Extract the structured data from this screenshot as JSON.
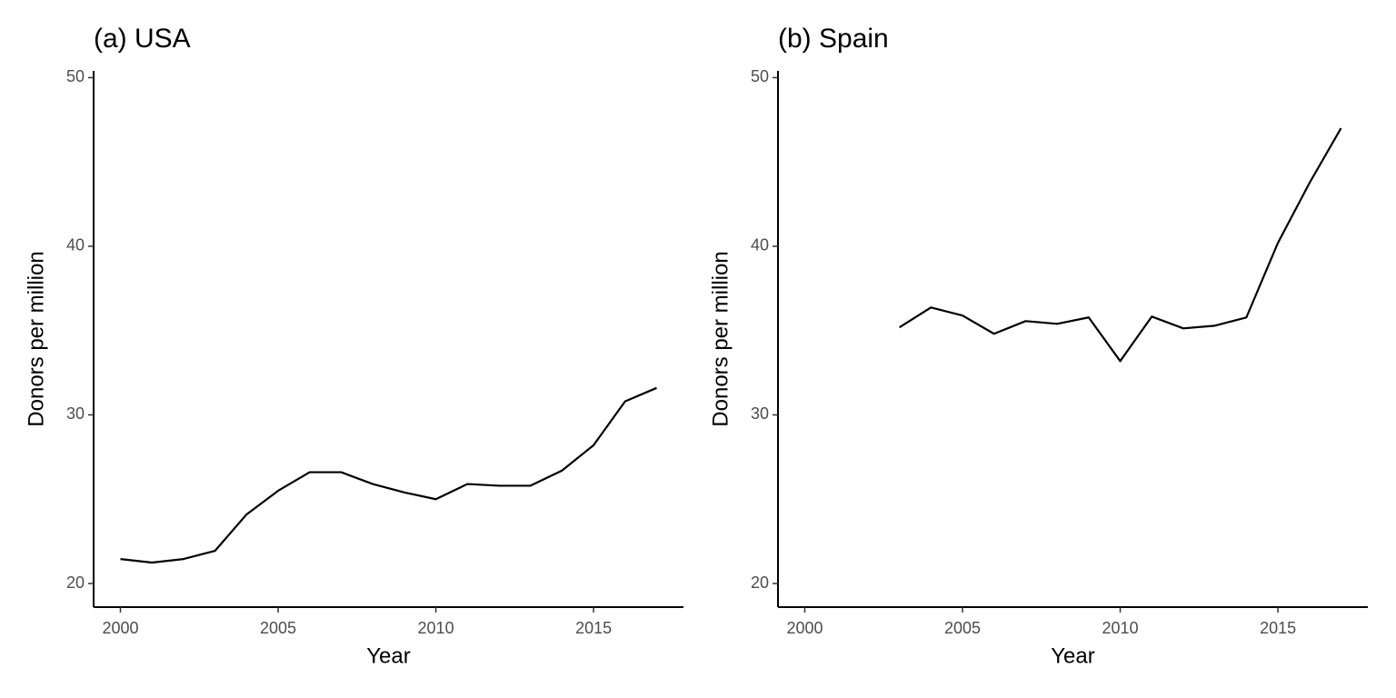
{
  "chart_data": [
    {
      "type": "line",
      "title": "(a) USA",
      "x_label": "Year",
      "y_label": "Donors per million",
      "x": [
        2000,
        2001,
        2002,
        2003,
        2004,
        2005,
        2006,
        2007,
        2008,
        2009,
        2010,
        2011,
        2012,
        2013,
        2014,
        2015,
        2016,
        2017
      ],
      "values": [
        21.45,
        21.24,
        21.45,
        21.94,
        24.1,
        25.5,
        26.6,
        26.6,
        25.9,
        25.4,
        25.0,
        25.9,
        25.8,
        25.8,
        26.7,
        28.2,
        30.8,
        31.6
      ],
      "color": "#000000",
      "xlim": [
        1999.15,
        2017.85
      ],
      "xticks": [
        2000,
        2005,
        2010,
        2015
      ],
      "ylim": [
        18.6,
        50.4
      ],
      "yticks": [
        20,
        30,
        40,
        50
      ]
    },
    {
      "type": "line",
      "title": "(b) Spain",
      "x_label": "Year",
      "y_label": "Donors per million",
      "x": [
        2003,
        2004,
        2005,
        2006,
        2007,
        2008,
        2009,
        2010,
        2011,
        2012,
        2013,
        2014,
        2015,
        2016,
        2017
      ],
      "values": [
        35.19,
        36.37,
        35.89,
        34.81,
        35.56,
        35.4,
        35.78,
        33.19,
        35.83,
        35.13,
        35.29,
        35.78,
        40.2,
        43.75,
        47.0
      ],
      "color": "#000000",
      "xlim": [
        1999.15,
        2017.85
      ],
      "xticks": [
        2000,
        2005,
        2010,
        2015
      ],
      "ylim": [
        18.6,
        50.4
      ],
      "yticks": [
        20,
        30,
        40,
        50
      ]
    }
  ]
}
